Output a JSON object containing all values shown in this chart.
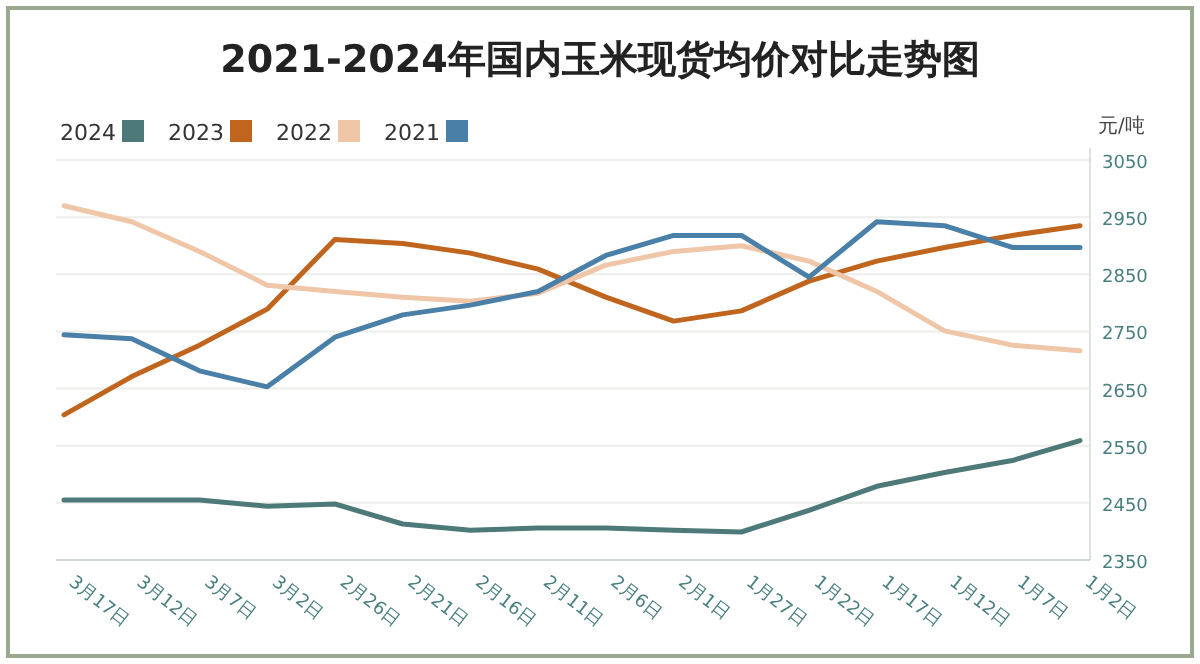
{
  "chart_data": {
    "type": "line",
    "title": "2021-2024年国内玉米现货均价对比走势图",
    "ylabel": "元/吨",
    "categories": [
      "3月17日",
      "3月12日",
      "3月7日",
      "3月2日",
      "2月26日",
      "2月21日",
      "2月16日",
      "2月11日",
      "2月6日",
      "2月1日",
      "1月27日",
      "1月22日",
      "1月17日",
      "1月12日",
      "1月7日",
      "1月2日"
    ],
    "series": [
      {
        "name": "2024",
        "color": "#4d7a78",
        "values": [
          2455,
          2455,
          2455,
          2444,
          2448,
          2413,
          2402,
          2406,
          2406,
          2402,
          2399,
          2437,
          2479,
          2503,
          2524,
          2559
        ]
      },
      {
        "name": "2023",
        "color": "#c0651e",
        "values": [
          2604,
          2671,
          2726,
          2789,
          2911,
          2904,
          2887,
          2859,
          2810,
          2768,
          2786,
          2838,
          2873,
          2897,
          2918,
          2935
        ]
      },
      {
        "name": "2022",
        "color": "#f0c6a8",
        "values": [
          2970,
          2942,
          2890,
          2831,
          2820,
          2810,
          2803,
          2817,
          2866,
          2890,
          2900,
          2873,
          2820,
          2751,
          2726,
          2716
        ]
      },
      {
        "name": "2021",
        "color": "#4a7fa8",
        "values": [
          2744,
          2737,
          2681,
          2653,
          2740,
          2779,
          2796,
          2820,
          2883,
          2918,
          2918,
          2845,
          2942,
          2935,
          2897,
          2897
        ]
      }
    ],
    "ylim": [
      2350,
      3050
    ],
    "yticks": [
      2350,
      2450,
      2550,
      2650,
      2750,
      2850,
      2950,
      3050
    ],
    "grid": "y",
    "legend": "top left",
    "marker": "none",
    "line_style": "solid"
  }
}
